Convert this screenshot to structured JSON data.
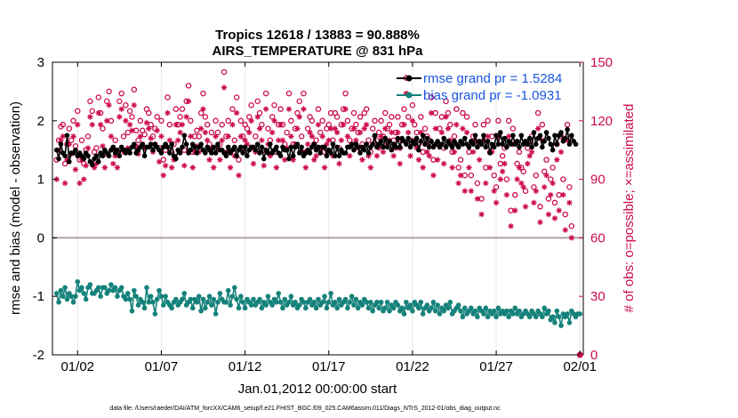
{
  "chart_data": {
    "type": "line",
    "title": "Tropics 12618 / 13883 = 90.888%",
    "subtitle": "AIRS_TEMPERATURE @ 831 hPa",
    "xlabel": "Jan.01,2012 00:00:00 start",
    "ylabel": "rmse and bias (model - observation)",
    "y2label": "# of obs: o=possible; ×=assimilated",
    "footnote": "data file: /Users/raeder/DAI/ATM_forcXX/CAM6_setup/f.e21.FHIST_BGC.f09_025.CAM6assim.011/Diags_NTrS_2012-01/obs_diag_output.nc",
    "xlim": [
      0.5,
      32.2
    ],
    "ylim": [
      -2,
      3
    ],
    "y2lim": [
      0,
      150
    ],
    "x_ticks": [
      {
        "value": 2,
        "label": "01/02"
      },
      {
        "value": 7,
        "label": "01/07"
      },
      {
        "value": 12,
        "label": "01/12"
      },
      {
        "value": 17,
        "label": "01/17"
      },
      {
        "value": 22,
        "label": "01/22"
      },
      {
        "value": 27,
        "label": "01/27"
      },
      {
        "value": 32,
        "label": "02/01"
      }
    ],
    "y_ticks": [
      -2,
      -1,
      0,
      1,
      2,
      3
    ],
    "y2_ticks": [
      0,
      30,
      60,
      90,
      120,
      150
    ],
    "grid": "vertical at x ticks",
    "legend_position": "top-right",
    "colors": {
      "rmse": "#000000",
      "bias": "#14827a",
      "obs": "#cc0b4e",
      "zero_line": "#b0a0a8"
    },
    "series": [
      {
        "name": "rmse grand pr = 1.5284",
        "color": "#000000",
        "x_start": 0.75,
        "x_step": 0.125,
        "values": [
          1.5,
          1.35,
          1.6,
          1.45,
          1.4,
          1.75,
          1.3,
          1.45,
          1.45,
          1.5,
          1.4,
          1.45,
          1.4,
          1.35,
          1.45,
          1.4,
          1.3,
          1.25,
          1.35,
          1.4,
          1.3,
          1.45,
          1.4,
          1.5,
          1.45,
          1.4,
          1.5,
          1.55,
          1.45,
          1.5,
          1.4,
          1.55,
          1.5,
          1.45,
          1.5,
          1.45,
          1.55,
          1.6,
          1.45,
          1.5,
          1.55,
          1.6,
          1.4,
          1.55,
          1.55,
          1.6,
          1.5,
          1.6,
          1.55,
          1.5,
          1.45,
          1.55,
          1.6,
          1.55,
          1.45,
          1.6,
          1.4,
          1.35,
          1.5,
          1.45,
          1.55,
          1.75,
          1.6,
          1.45,
          1.5,
          1.6,
          1.55,
          1.45,
          1.55,
          1.6,
          1.5,
          1.45,
          1.55,
          1.5,
          1.45,
          1.55,
          1.45,
          1.6,
          1.5,
          1.5,
          1.45,
          1.4,
          1.55,
          1.45,
          1.5,
          1.55,
          1.4,
          1.5,
          1.55,
          1.45,
          1.55,
          1.4,
          1.5,
          1.55,
          1.55,
          1.5,
          1.6,
          1.45,
          1.55,
          1.35,
          1.5,
          1.45,
          1.6,
          1.45,
          1.5,
          1.55,
          1.45,
          1.4,
          1.55,
          1.5,
          1.5,
          1.35,
          1.55,
          1.4,
          1.55,
          1.6,
          1.45,
          1.55,
          1.4,
          1.45,
          1.5,
          1.45,
          1.55,
          1.6,
          1.5,
          1.55,
          1.45,
          1.55,
          1.55,
          1.4,
          1.5,
          1.45,
          1.6,
          1.4,
          1.55,
          1.4,
          1.5,
          1.45,
          1.45,
          1.55,
          1.55,
          1.6,
          1.5,
          1.6,
          1.55,
          1.45,
          1.55,
          1.5,
          1.6,
          1.45,
          1.55,
          1.6,
          1.75,
          1.55,
          1.6,
          1.65,
          1.55,
          1.7,
          1.55,
          1.65,
          1.5,
          1.6,
          1.55,
          1.7,
          1.55,
          1.7,
          1.65,
          1.6,
          1.7,
          1.55,
          1.65,
          1.6,
          1.7,
          1.5,
          1.65,
          1.75,
          1.6,
          1.7,
          1.55,
          1.65,
          1.55,
          1.6,
          1.65,
          1.55,
          1.6,
          1.7,
          1.55,
          1.65,
          1.6,
          1.55,
          1.65,
          1.6,
          1.55,
          1.65,
          1.6,
          1.7,
          1.6,
          1.55,
          1.65,
          1.6,
          1.75,
          1.55,
          1.65,
          1.6,
          1.75,
          1.55,
          1.65,
          1.45,
          1.6,
          1.55,
          1.75,
          1.6,
          1.8,
          1.6,
          1.7,
          1.55,
          1.65,
          1.6,
          1.75,
          1.6,
          1.65,
          1.55,
          1.75,
          1.6,
          1.65,
          1.6,
          1.7,
          1.55,
          1.8,
          1.6,
          1.7,
          1.75,
          1.55,
          1.65,
          1.8,
          1.7,
          1.6,
          1.5,
          1.75,
          1.6,
          1.75,
          1.8,
          1.65,
          1.7,
          1.85,
          1.6,
          1.75,
          1.65,
          1.6
        ]
      },
      {
        "name": "bias grand pr = -1.0931",
        "color": "#14827a",
        "x_start": 0.75,
        "x_step": 0.125,
        "values": [
          -0.95,
          -1.1,
          -0.9,
          -1.0,
          -0.85,
          -1.05,
          -0.95,
          -1.0,
          -1.1,
          -1.0,
          -0.75,
          -0.9,
          -0.85,
          -0.95,
          -1.05,
          -0.85,
          -0.8,
          -0.95,
          -0.95,
          -0.9,
          -0.85,
          -1.0,
          -0.85,
          -0.85,
          -0.95,
          -0.9,
          -0.8,
          -0.9,
          -0.85,
          -1.0,
          -0.9,
          -0.85,
          -1.0,
          -1.05,
          -0.95,
          -1.05,
          -1.25,
          -0.9,
          -1.0,
          -1.15,
          -1.05,
          -1.1,
          -1.2,
          -0.85,
          -1.1,
          -1.0,
          -1.1,
          -1.3,
          -1.05,
          -0.9,
          -1.0,
          -1.15,
          -1.0,
          -1.1,
          -1.15,
          -1.2,
          -1.1,
          -1.05,
          -1.15,
          -1.1,
          -1.05,
          -0.95,
          -1.15,
          -1.1,
          -1.05,
          -1.2,
          -1.05,
          -1.1,
          -1.0,
          -1.25,
          -1.05,
          -1.2,
          -1.1,
          -1.0,
          -1.15,
          -1.05,
          -1.3,
          -1.1,
          -0.95,
          -1.05,
          -1.1,
          -1.1,
          -0.9,
          -1.15,
          -1.0,
          -0.85,
          -1.05,
          -1.2,
          -1.0,
          -1.1,
          -1.2,
          -1.05,
          -1.1,
          -1.15,
          -1.05,
          -1.15,
          -1.1,
          -1.05,
          -1.2,
          -1.1,
          -1.15,
          -1.0,
          -1.1,
          -1.15,
          -1.05,
          -1.1,
          -0.95,
          -1.1,
          -1.2,
          -1.05,
          -1.15,
          -1.1,
          -1.0,
          -1.15,
          -1.1,
          -1.2,
          -1.15,
          -1.05,
          -1.1,
          -1.2,
          -1.1,
          -1.05,
          -1.15,
          -1.1,
          -1.2,
          -1.05,
          -1.15,
          -1.1,
          -1.0,
          -1.2,
          -1.1,
          -0.95,
          -1.15,
          -1.1,
          -1.2,
          -1.05,
          -1.15,
          -1.1,
          -1.05,
          -1.2,
          -1.1,
          -1.0,
          -1.15,
          -1.05,
          -1.2,
          -1.1,
          -1.15,
          -1.05,
          -1.1,
          -1.2,
          -1.1,
          -1.25,
          -1.15,
          -1.1,
          -1.2,
          -1.1,
          -1.25,
          -1.2,
          -1.1,
          -1.25,
          -1.15,
          -1.2,
          -1.1,
          -1.15,
          -1.25,
          -1.2,
          -1.3,
          -1.1,
          -1.2,
          -1.15,
          -1.25,
          -1.1,
          -1.15,
          -1.2,
          -1.1,
          -1.3,
          -1.2,
          -1.15,
          -1.25,
          -1.2,
          -1.1,
          -1.25,
          -1.15,
          -1.3,
          -1.2,
          -1.25,
          -1.15,
          -1.2,
          -1.1,
          -1.3,
          -1.25,
          -1.2,
          -1.15,
          -1.25,
          -1.35,
          -1.2,
          -1.3,
          -1.25,
          -1.2,
          -1.3,
          -1.25,
          -1.35,
          -1.2,
          -1.25,
          -1.3,
          -1.2,
          -1.35,
          -1.25,
          -1.3,
          -1.25,
          -1.35,
          -1.2,
          -1.3,
          -1.25,
          -1.3,
          -1.25,
          -1.35,
          -1.25,
          -1.3,
          -1.2,
          -1.3,
          -1.25,
          -1.35,
          -1.3,
          -1.25,
          -1.3,
          -1.35,
          -1.25,
          -1.3,
          -1.35,
          -1.25,
          -1.3,
          -1.35,
          -1.2,
          -1.3,
          -1.25,
          -1.4,
          -1.35,
          -1.45,
          -1.25,
          -1.35,
          -1.5,
          -1.3,
          -1.35,
          -1.3,
          -1.45,
          -1.25,
          -1.3,
          -1.35,
          -1.3,
          -1.3
        ]
      },
      {
        "name": "possible",
        "color": "#cc0b4e",
        "marker": "circle",
        "x_start": 0.75,
        "x_step": 0.125,
        "values": [
          100,
          110,
          117,
          118,
          98,
          108,
          116,
          110,
          120,
          107,
          125,
          100,
          110,
          98,
          105,
          112,
          130,
          125,
          104,
          106,
          132,
          124,
          116,
          103,
          130,
          135,
          120,
          106,
          110,
          104,
          130,
          134,
          112,
          128,
          114,
          125,
          122,
          136,
          115,
          110,
          120,
          115,
          113,
          126,
          124,
          118,
          112,
          116,
          122,
          106,
          120,
          100,
          105,
          132,
          118,
          104,
          108,
          126,
          118,
          122,
          126,
          105,
          130,
          138,
          120,
          104,
          112,
          115,
          112,
          124,
          134,
          122,
          118,
          108,
          114,
          104,
          120,
          114,
          108,
          118,
          145,
          112,
          120,
          104,
          126,
          110,
          132,
          100,
          120,
          112,
          118,
          116,
          122,
          128,
          106,
          112,
          130,
          124,
          118,
          105,
          134,
          116,
          110,
          122,
          128,
          104,
          118,
          126,
          118,
          108,
          114,
          134,
          120,
          108,
          116,
          124,
          130,
          112,
          134,
          104,
          116,
          122,
          120,
          108,
          110,
          126,
          114,
          120,
          104,
          116,
          118,
          124,
          110,
          124,
          122,
          106,
          118,
          126,
          134,
          120,
          110,
          116,
          124,
          118,
          114,
          122,
          108,
          124,
          126,
          110,
          104,
          116,
          120,
          110,
          114,
          120,
          112,
          124,
          116,
          118,
          122,
          110,
          114,
          122,
          106,
          118,
          126,
          142,
          122,
          110,
          128,
          118,
          114,
          108,
          122,
          104,
          116,
          112,
          110,
          132,
          100,
          124,
          108,
          116,
          122,
          106,
          130,
          124,
          118,
          104,
          112,
          126,
          96,
          100,
          124,
          92,
          122,
          104,
          92,
          112,
          118,
          88,
          108,
          80,
          118,
          96,
          120,
          104,
          112,
          92,
          86,
          120,
          98,
          102,
          106,
          90,
          120,
          74,
          116,
          82,
          98,
          104,
          96,
          94,
          84,
          106,
          110,
          112,
          86,
          92,
          124,
          76,
          118,
          94,
          100,
          80,
          90,
          96,
          78,
          108,
          82,
          112,
          90,
          72,
          118,
          86,
          66
        ]
      },
      {
        "name": "assimilated",
        "color": "#cc0b4e",
        "marker": "asterisk",
        "x_start": 0.75,
        "x_step": 0.125,
        "values": [
          90,
          105,
          110,
          112,
          88,
          100,
          108,
          103,
          112,
          95,
          118,
          88,
          100,
          90,
          97,
          106,
          122,
          118,
          96,
          98,
          124,
          118,
          107,
          96,
          120,
          128,
          112,
          98,
          102,
          96,
          122,
          126,
          104,
          120,
          106,
          118,
          115,
          128,
          107,
          103,
          112,
          108,
          106,
          119,
          116,
          111,
          104,
          108,
          115,
          99,
          112,
          92,
          97,
          124,
          110,
          96,
          100,
          118,
          110,
          114,
          118,
          97,
          122,
          130,
          112,
          96,
          104,
          107,
          104,
          116,
          126,
          114,
          110,
          100,
          106,
          96,
          112,
          106,
          100,
          110,
          137,
          104,
          112,
          96,
          118,
          102,
          124,
          92,
          112,
          104,
          110,
          108,
          114,
          120,
          98,
          104,
          122,
          116,
          110,
          97,
          126,
          108,
          102,
          114,
          120,
          96,
          110,
          118,
          110,
          100,
          106,
          126,
          112,
          100,
          108,
          116,
          122,
          104,
          126,
          96,
          108,
          114,
          112,
          100,
          102,
          118,
          106,
          112,
          96,
          108,
          110,
          116,
          102,
          116,
          114,
          98,
          110,
          118,
          126,
          112,
          102,
          108,
          116,
          110,
          106,
          114,
          100,
          116,
          118,
          102,
          96,
          108,
          112,
          102,
          106,
          112,
          104,
          116,
          108,
          110,
          114,
          102,
          106,
          114,
          98,
          110,
          118,
          134,
          114,
          102,
          120,
          110,
          106,
          100,
          114,
          96,
          108,
          104,
          102,
          124,
          92,
          116,
          100,
          108,
          114,
          98,
          122,
          116,
          110,
          96,
          104,
          118,
          88,
          92,
          116,
          84,
          114,
          96,
          84,
          104,
          110,
          80,
          100,
          72,
          110,
          88,
          112,
          96,
          104,
          84,
          78,
          112,
          90,
          94,
          98,
          82,
          112,
          66,
          108,
          74,
          90,
          96,
          88,
          86,
          76,
          98,
          102,
          104,
          78,
          84,
          116,
          68,
          110,
          86,
          92,
          72,
          82,
          88,
          70,
          100,
          74,
          104,
          82,
          64,
          110,
          78,
          60
        ]
      }
    ]
  }
}
